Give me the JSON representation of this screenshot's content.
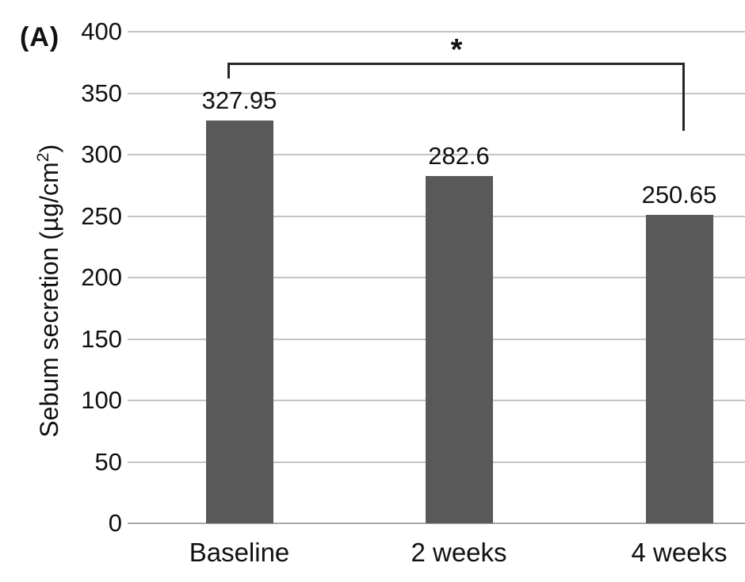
{
  "panel_label": "(A)",
  "colors": {
    "bar": "#595959",
    "gridline": "#c4c4c4",
    "baseline_axis": "#a8a8a8",
    "bracket": "#262626",
    "text": "#111111",
    "background": "#ffffff"
  },
  "chart_data": {
    "type": "bar",
    "categories": [
      "Baseline",
      "2 weeks",
      "4 weeks"
    ],
    "values": [
      327.95,
      282.6,
      250.65
    ],
    "value_labels": [
      "327.95",
      "282.6",
      "250.65"
    ],
    "title": "",
    "xlabel": "",
    "ylabel": "Sebum secretion (µg/cm²)",
    "ylabel_main": "Sebum secretion (µg/cm",
    "ylabel_sup": "2",
    "ylabel_close": ")",
    "ylim": [
      0,
      400
    ],
    "ytick_step": 50,
    "yticks": [
      0,
      50,
      100,
      150,
      200,
      250,
      300,
      350,
      400
    ],
    "grid": true,
    "legend": null,
    "significance": {
      "symbol": "*",
      "from_category": "Baseline",
      "to_category": "4 weeks",
      "from_index": 0,
      "to_index": 2
    }
  }
}
